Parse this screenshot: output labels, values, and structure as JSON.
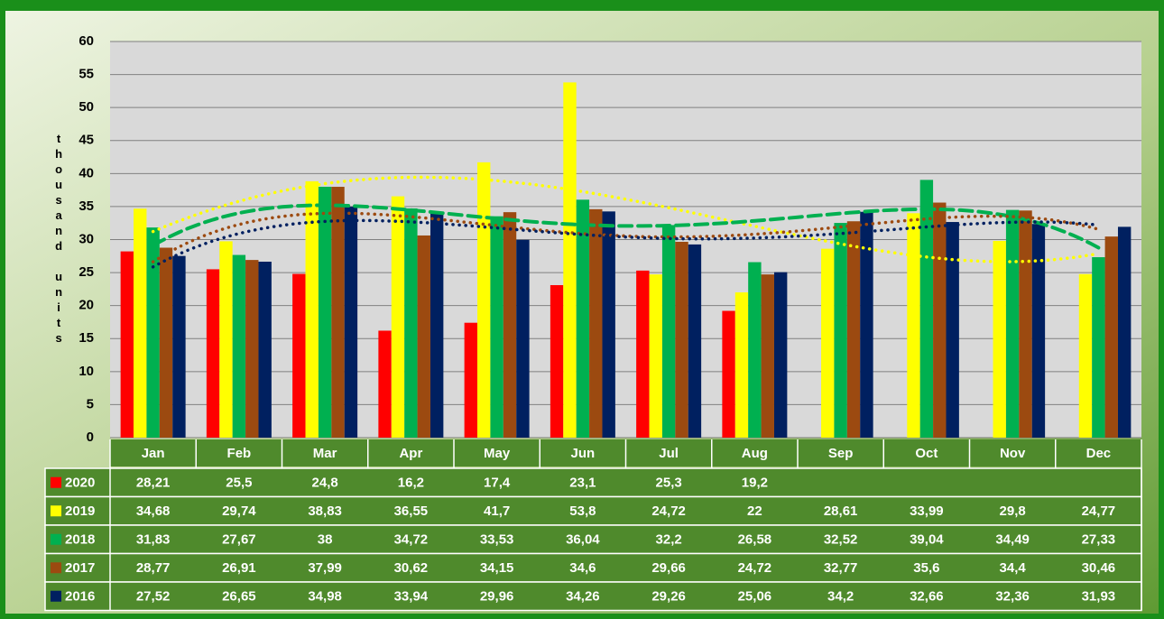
{
  "chart_data": {
    "type": "bar",
    "y_label": "thousand units",
    "categories": [
      "Jan",
      "Feb",
      "Mar",
      "Apr",
      "May",
      "Jun",
      "Jul",
      "Aug",
      "Sep",
      "Oct",
      "Nov",
      "Dec"
    ],
    "series": [
      {
        "name": "2020",
        "color": "#ff0000",
        "values": [
          28.21,
          25.5,
          24.8,
          16.2,
          17.4,
          23.1,
          25.3,
          19.2,
          null,
          null,
          null,
          null
        ],
        "value_labels": [
          "28,21",
          "25,5",
          "24,8",
          "16,2",
          "17,4",
          "23,1",
          "25,3",
          "19,2",
          null,
          null,
          null,
          null
        ]
      },
      {
        "name": "2019",
        "color": "#ffff00",
        "trendline": "dotted",
        "values": [
          34.68,
          29.74,
          38.83,
          36.55,
          41.7,
          53.8,
          24.72,
          22,
          28.61,
          33.99,
          29.8,
          24.77
        ],
        "value_labels": [
          "34,68",
          "29,74",
          "38,83",
          "36,55",
          "41,7",
          "53,8",
          "24,72",
          "22",
          "28,61",
          "33,99",
          "29,8",
          "24,77"
        ]
      },
      {
        "name": "2018",
        "color": "#00b050",
        "trendline": "dashed",
        "values": [
          31.83,
          27.67,
          38,
          34.72,
          33.53,
          36.04,
          32.2,
          26.58,
          32.52,
          39.04,
          34.49,
          27.33
        ],
        "value_labels": [
          "31,83",
          "27,67",
          "38",
          "34,72",
          "33,53",
          "36,04",
          "32,2",
          "26,58",
          "32,52",
          "39,04",
          "34,49",
          "27,33"
        ]
      },
      {
        "name": "2017",
        "color": "#9c4a10",
        "trendline": "dotted",
        "values": [
          28.77,
          26.91,
          37.99,
          30.62,
          34.15,
          34.6,
          29.66,
          24.72,
          32.77,
          35.6,
          34.4,
          30.46
        ],
        "value_labels": [
          "28,77",
          "26,91",
          "37,99",
          "30,62",
          "34,15",
          "34,6",
          "29,66",
          "24,72",
          "32,77",
          "35,6",
          "34,4",
          "30,46"
        ]
      },
      {
        "name": "2016",
        "color": "#002060",
        "trendline": "dotted",
        "values": [
          27.52,
          26.65,
          34.98,
          33.94,
          29.96,
          34.26,
          29.26,
          25.06,
          34.2,
          32.66,
          32.36,
          31.93
        ],
        "value_labels": [
          "27,52",
          "26,65",
          "34,98",
          "33,94",
          "29,96",
          "34,26",
          "29,26",
          "25,06",
          "34,2",
          "32,66",
          "32,36",
          "31,93"
        ]
      }
    ],
    "ylim": [
      0,
      60
    ],
    "yticks": [
      0,
      5,
      10,
      15,
      20,
      25,
      30,
      35,
      40,
      45,
      50,
      55,
      60
    ],
    "grid": true
  }
}
